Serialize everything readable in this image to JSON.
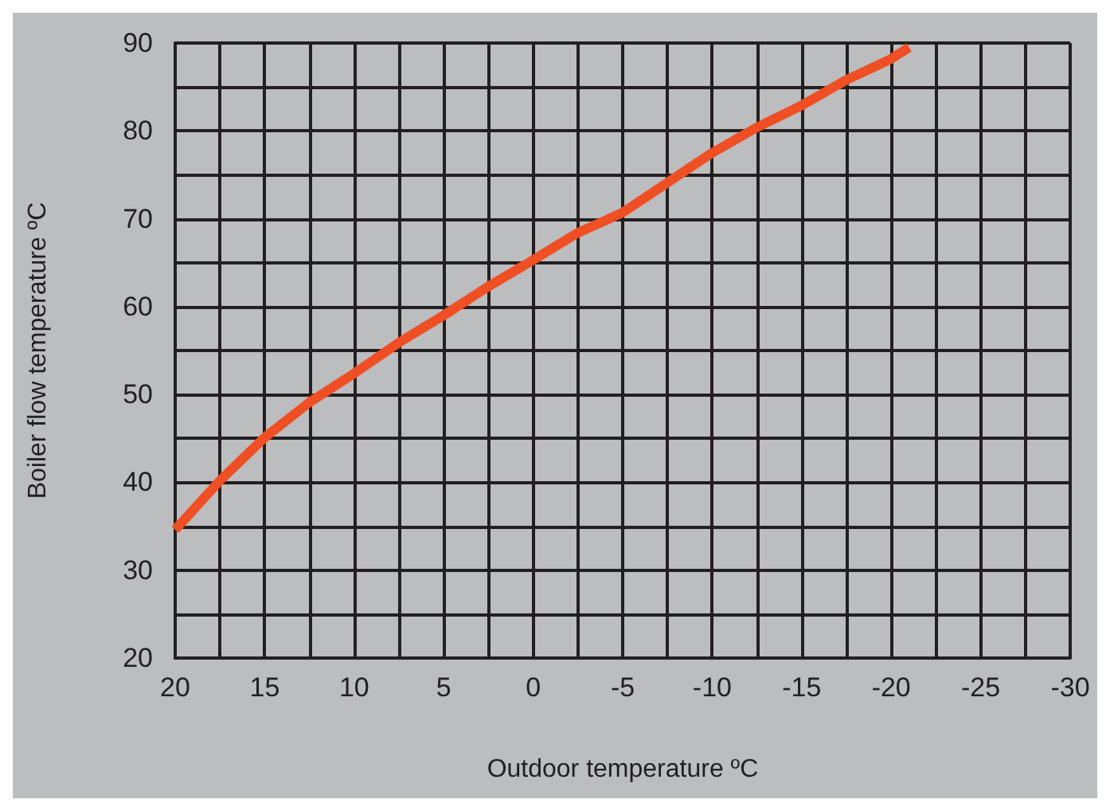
{
  "chart_data": {
    "type": "line",
    "xlabel": "Outdoor temperature ºC",
    "ylabel": "Boiler flow temperature ºC",
    "x": [
      20,
      17.5,
      15,
      12.5,
      10,
      7.5,
      5,
      2.5,
      0,
      -2.5,
      -5,
      -7.5,
      -10,
      -12.5,
      -15,
      -17.5,
      -20,
      -21
    ],
    "series": [
      {
        "color": "#f04e23",
        "values": [
          34.6,
          40.2,
          45.1,
          49.1,
          52.4,
          55.9,
          59.0,
          62.3,
          65.3,
          68.4,
          70.7,
          74.1,
          77.5,
          80.4,
          82.9,
          85.8,
          88.2,
          89.5
        ]
      }
    ],
    "xlim": [
      20,
      -30
    ],
    "xticks": [
      20,
      {
        "value": 17.5,
        "label": null
      },
      15,
      {
        "value": 12.5,
        "label": null
      },
      10,
      {
        "value": 7.5,
        "label": null
      },
      5,
      {
        "value": 2.5,
        "label": null
      },
      0,
      {
        "value": -2.5,
        "label": null
      },
      -5,
      {
        "value": -7.5,
        "label": null
      },
      -10,
      {
        "value": -12.5,
        "label": null
      },
      -15,
      {
        "value": -17.5,
        "label": null
      },
      -20,
      {
        "value": -22.5,
        "label": null
      },
      -25,
      {
        "value": -27.5,
        "label": null
      },
      -30
    ],
    "ylim": [
      20,
      90
    ],
    "yticks": [
      20,
      {
        "value": 25,
        "label": null
      },
      30,
      {
        "value": 35,
        "label": null
      },
      40,
      {
        "value": 45,
        "label": null
      },
      50,
      {
        "value": 55,
        "label": null
      },
      60,
      {
        "value": 65,
        "label": null
      },
      70,
      {
        "value": 75,
        "label": null
      },
      80,
      {
        "value": 85,
        "label": null
      },
      90
    ],
    "grid": true,
    "marker": "none",
    "line_style": "solid"
  }
}
